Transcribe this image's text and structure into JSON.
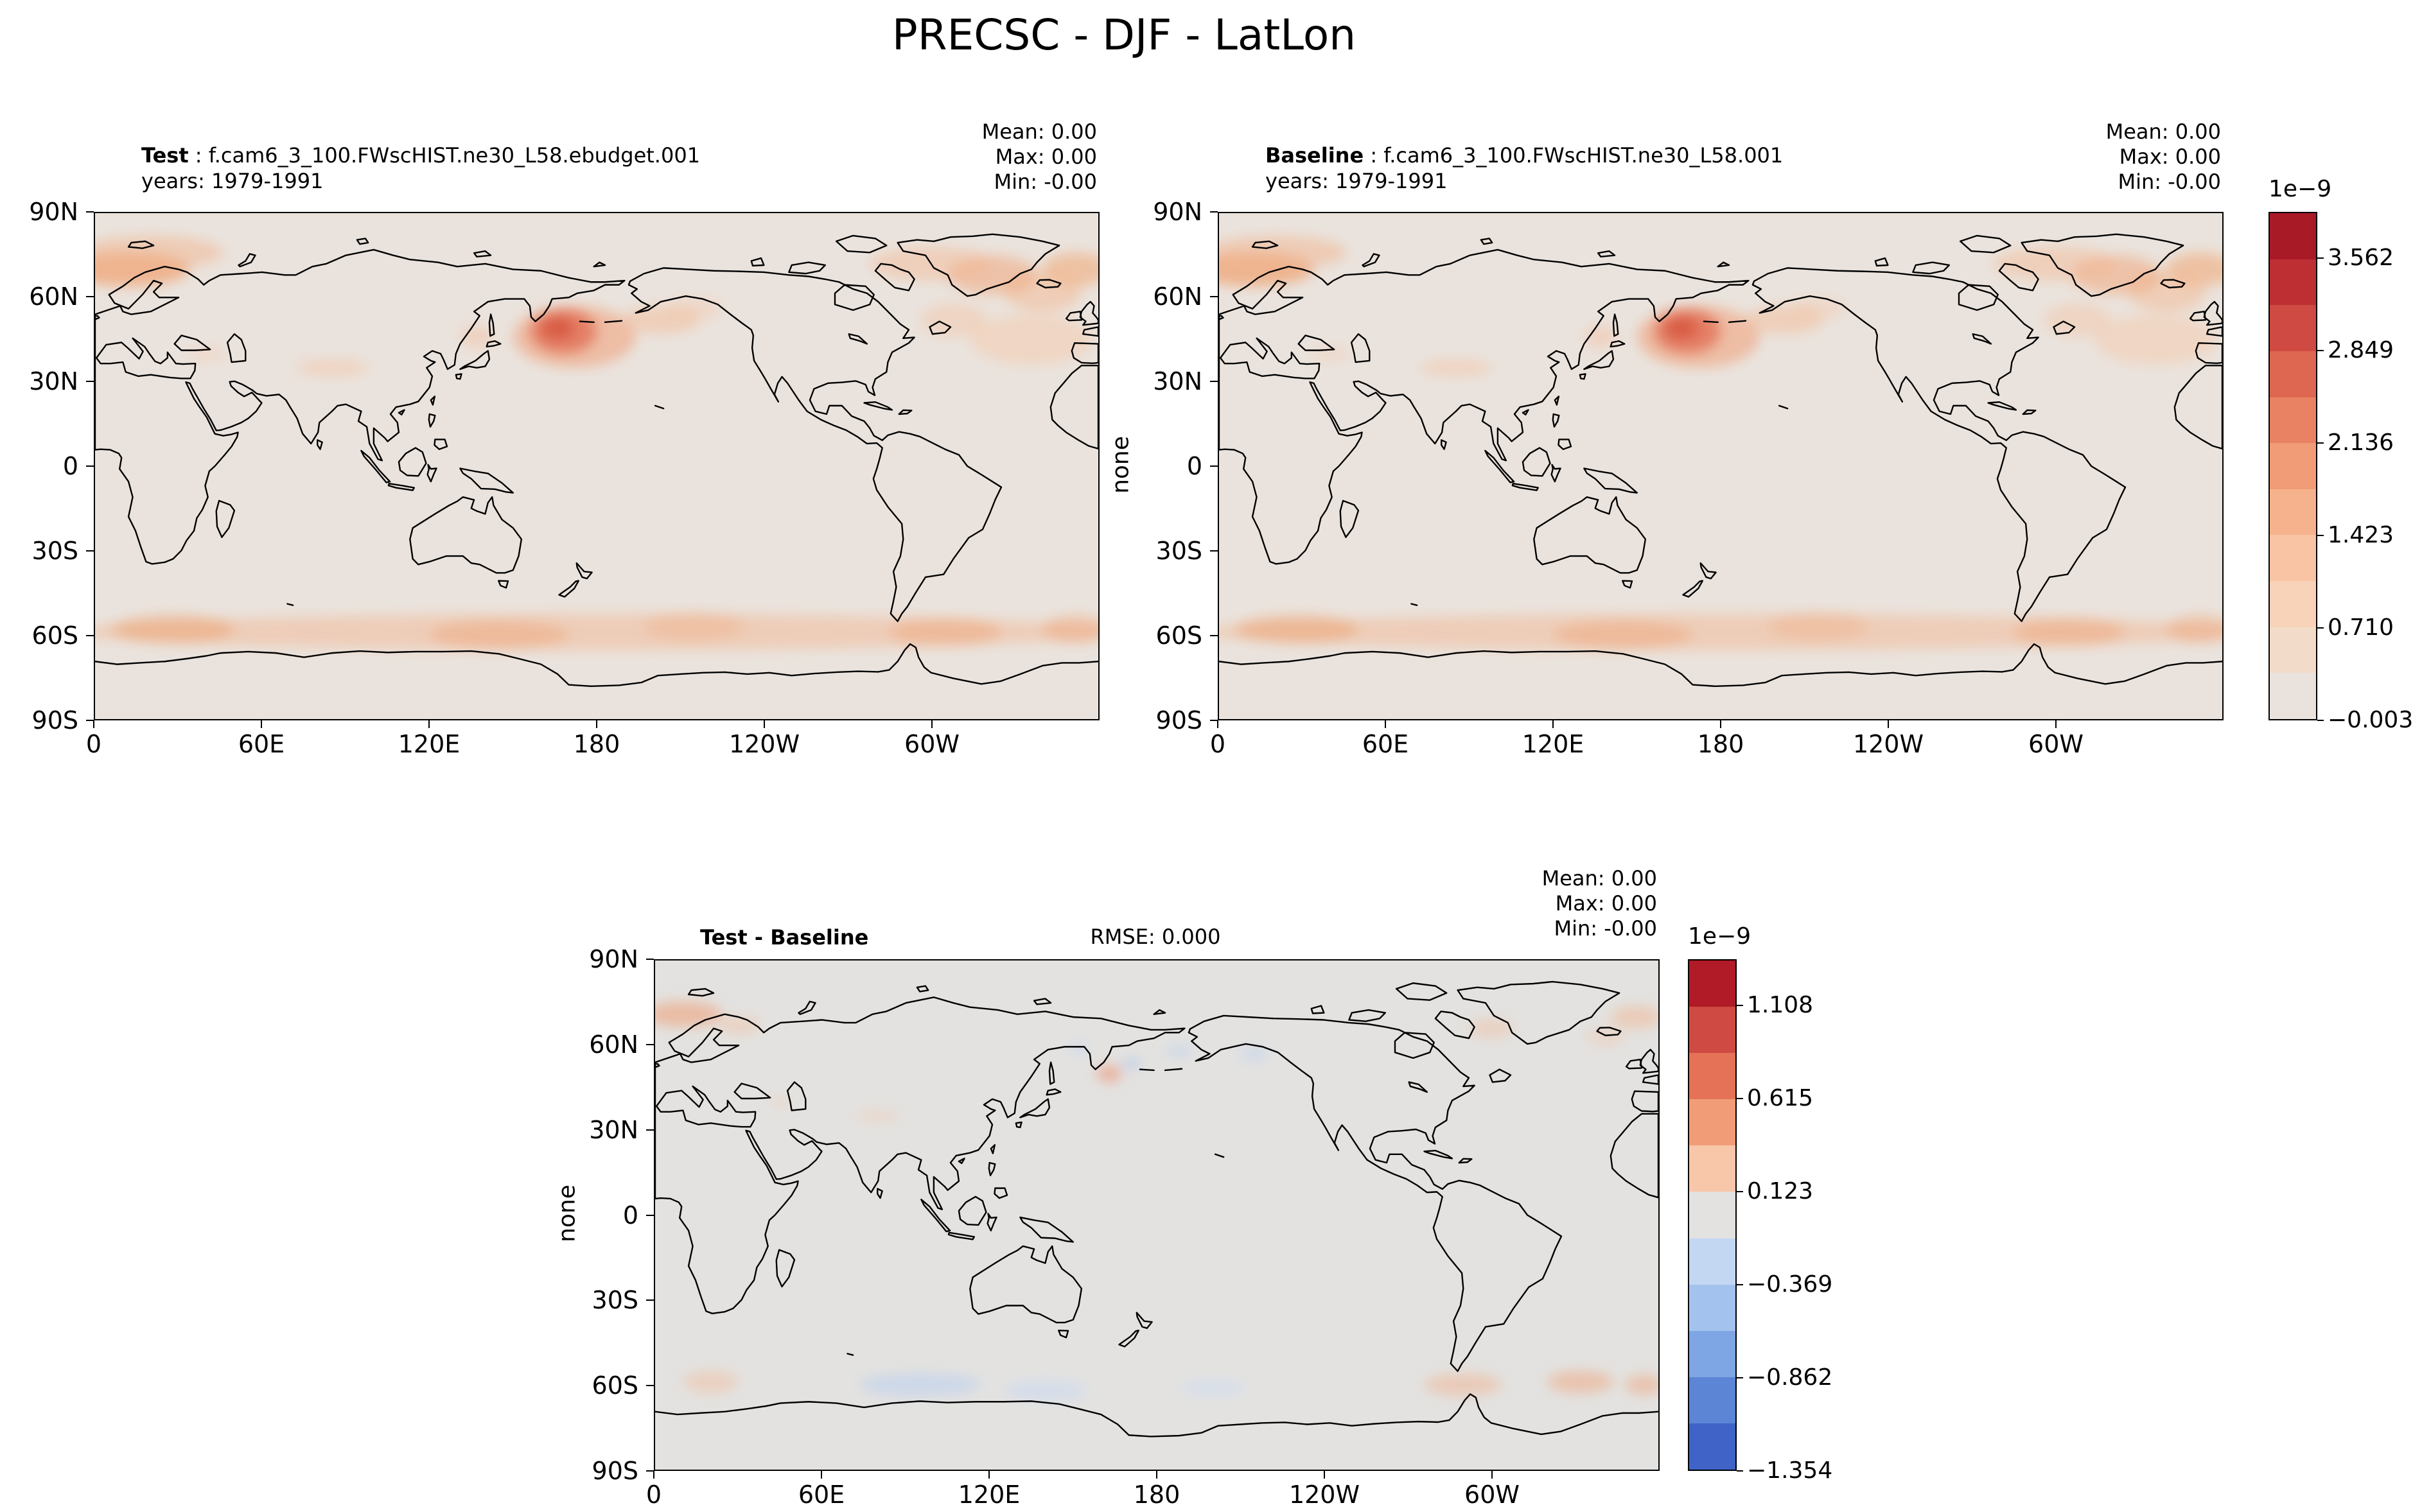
{
  "title": "PRECSC - DJF - LatLon",
  "axis": {
    "x_labels": [
      "0",
      "60E",
      "120E",
      "180",
      "120W",
      "60W"
    ],
    "y_labels": [
      "90N",
      "60N",
      "30N",
      "0",
      "30S",
      "60S",
      "90S"
    ],
    "ylabel": "none"
  },
  "panel_test": {
    "label_bold": "Test",
    "label_sep": " : ",
    "dataset": "f.cam6_3_100.FWscHIST.ne30_L58.ebudget.001",
    "years_line": "years: 1979-1991",
    "stats": [
      "Mean:  0.00",
      "Max:  0.00",
      "Min: -0.00"
    ]
  },
  "panel_baseline": {
    "label_bold": "Baseline",
    "label_sep": " : ",
    "dataset": "f.cam6_3_100.FWscHIST.ne30_L58.001",
    "years_line": "years: 1979-1991",
    "stats": [
      "Mean:  0.00",
      "Max:  0.00",
      "Min: -0.00"
    ]
  },
  "panel_diff": {
    "label_bold": "Test - Baseline",
    "rmse_label": "RMSE: 0.000",
    "stats": [
      "Mean:  0.00",
      "Max:  0.00",
      "Min: -0.00"
    ]
  },
  "colorbar1": {
    "exp": "1e−9",
    "ticks": [
      "3.562",
      "2.849",
      "2.136",
      "1.423",
      "0.710",
      "−0.003"
    ],
    "colors": [
      "#a81a26",
      "#bd2f32",
      "#cf4a42",
      "#de6752",
      "#e98263",
      "#f19c77",
      "#f6b28d",
      "#f9c4a3",
      "#f9d3b9",
      "#f2dcc9",
      "#eae3dd"
    ]
  },
  "colorbar2": {
    "exp": "1e−9",
    "ticks": [
      "1.108",
      "0.615",
      "0.123",
      "−0.369",
      "−0.862",
      "−1.354"
    ],
    "colors": [
      "#b01b27",
      "#cf4a42",
      "#e57256",
      "#f19c77",
      "#f8c6a9",
      "#e3e2e0",
      "#c3d7f3",
      "#a3c2ee",
      "#7fa6e4",
      "#5c85d6",
      "#3f63c6"
    ]
  },
  "colors": {
    "map_bg": "#eae3dd",
    "diff_bg": "#e3e2e0",
    "coastline": "#000000",
    "max_red": "#a81a26",
    "max_blue": "#3f63c6"
  },
  "chart_data": {
    "type": "heatmap",
    "subtype": "global-latlon-filled-contour-maps",
    "variable": "PRECSC",
    "season": "DJF",
    "projection_grid": "LatLon",
    "value_scale": "1e-9",
    "lon_axis": {
      "range_deg": [
        0,
        360
      ],
      "tick_positions_deg": [
        0,
        60,
        120,
        180,
        240,
        300
      ],
      "tick_labels": [
        "0",
        "60E",
        "120E",
        "180",
        "120W",
        "60W"
      ]
    },
    "lat_axis": {
      "range_deg": [
        90,
        -90
      ],
      "tick_positions_deg": [
        90,
        60,
        30,
        0,
        -30,
        -60,
        -90
      ],
      "tick_labels": [
        "90N",
        "60N",
        "30N",
        "0",
        "30S",
        "60S",
        "90S"
      ],
      "axis_label": "none"
    },
    "panels": [
      {
        "name": "Test",
        "case": "f.cam6_3_100.FWscHIST.ne30_L58.ebudget.001",
        "years": "1979-1991",
        "mean": 0.0,
        "max": 0.0,
        "min": -0.0,
        "colorbar": "top"
      },
      {
        "name": "Baseline",
        "case": "f.cam6_3_100.FWscHIST.ne30_L58.001",
        "years": "1979-1991",
        "mean": 0.0,
        "max": 0.0,
        "min": -0.0,
        "colorbar": "top"
      },
      {
        "name": "Test - Baseline",
        "rmse": 0.0,
        "mean": 0.0,
        "max": 0.0,
        "min": -0.0,
        "colorbar": "bottom"
      }
    ],
    "colorbars": [
      {
        "position": "top-right",
        "exponent": "1e−9",
        "tick_values": [
          3.562,
          2.849,
          2.136,
          1.423,
          0.71,
          -0.003
        ],
        "n_segments": 11,
        "palette": "light warm gray to dark red (sequential)"
      },
      {
        "position": "bottom-right",
        "exponent": "1e−9",
        "tick_values": [
          1.108,
          0.615,
          0.123,
          -0.369,
          -0.862,
          -1.354
        ],
        "n_segments": 11,
        "palette": "dark blue to gray to dark red (diverging)"
      }
    ],
    "notable_features": [
      "Test and Baseline panels nearly identical: reddish maxima over the Norwegian/Barents Sea, the northwest Pacific near Kamchatka, the northern North Atlantic, and a circumpolar Southern Ocean band near 50-65S; elsewhere near zero",
      "Difference panel is near zero everywhere, with faint red speckles near Norway/Barents and the far-right Atlantic edge and faint blue/red patches along the Southern Ocean band"
    ]
  }
}
